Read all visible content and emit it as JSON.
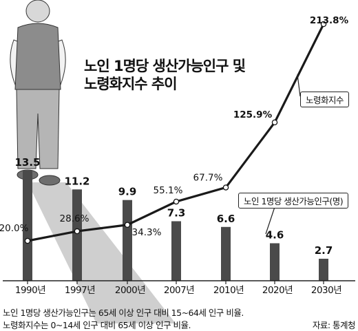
{
  "title": {
    "line1": "노인 1명당 생산가능인구 및",
    "line2": "노령화지수 추이"
  },
  "notes": {
    "line1": "노인 1명당 생산가능인구는 65세 이상 인구 대비 15~64세 인구 비율.",
    "line2": "노령화지수는 0~14세 인구 대비 65세 이상 인구 비율."
  },
  "source": "자료: 통계청",
  "colors": {
    "bar": "#4a4a4a",
    "line": "#1a1a1a",
    "shadow": "#c8c8c8"
  },
  "chart_data": {
    "type": "bar+line",
    "categories": [
      "1990년",
      "1997년",
      "2000년",
      "2007년",
      "2010년",
      "2020년",
      "2030년"
    ],
    "series": [
      {
        "name": "노인 1명당 생산가능인구(명)",
        "type": "bar",
        "values": [
          13.5,
          11.2,
          9.9,
          7.3,
          6.6,
          4.6,
          2.7
        ],
        "labels": [
          "13.5",
          "11.2",
          "9.9",
          "7.3",
          "6.6",
          "4.6",
          "2.7"
        ]
      },
      {
        "name": "노령화지수",
        "type": "line",
        "values": [
          20.0,
          28.6,
          34.3,
          55.1,
          67.7,
          125.9,
          213.8
        ],
        "labels": [
          "20.0%",
          "28.6%",
          "34.3%",
          "55.1%",
          "67.7%",
          "125.9%",
          "213.8%"
        ]
      }
    ],
    "grid": false
  }
}
